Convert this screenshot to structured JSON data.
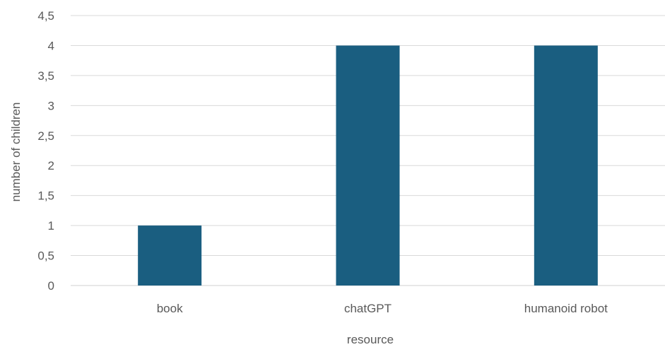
{
  "chart_data": {
    "type": "bar",
    "title": "",
    "categories": [
      "book",
      "chatGPT",
      "humanoid robot"
    ],
    "values": [
      1,
      4,
      4
    ],
    "xlabel": "resource",
    "ylabel": "number of children",
    "ylim": [
      0,
      4.5
    ],
    "yticks": [
      "0",
      "0,5",
      "1",
      "1,5",
      "2",
      "2,5",
      "3",
      "3,5",
      "4",
      "4,5"
    ],
    "ytick_values": [
      0,
      0.5,
      1,
      1.5,
      2,
      2.5,
      3,
      3.5,
      4,
      4.5
    ],
    "grid": true,
    "legend": "none",
    "bar_color": "#1a5e80",
    "grid_color": "#d9d9d9",
    "text_color": "#595959"
  }
}
